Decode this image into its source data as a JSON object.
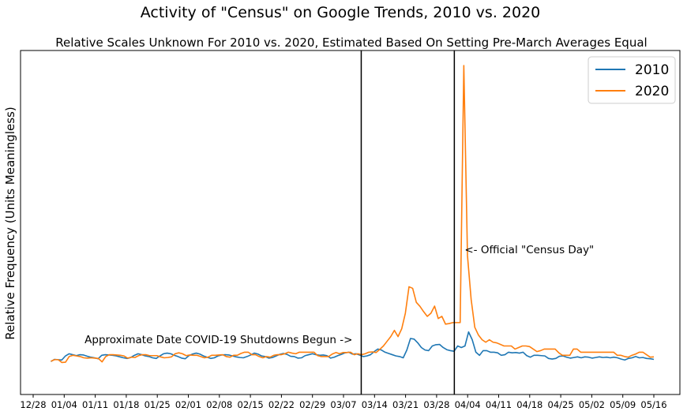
{
  "chart_data": {
    "type": "line",
    "title": "Activity of \"Census\" on Google Trends, 2010 vs. 2020",
    "subtitle": "Relative Scales Unknown For 2010 vs. 2020, Estimated Based On Setting Pre-March Averages Equal",
    "xlabel": "",
    "ylabel": "Relative Frequency (Units Meaningless)",
    "x_tick_labels": [
      "12/28",
      "01/04",
      "01/11",
      "01/18",
      "01/25",
      "02/01",
      "02/08",
      "02/15",
      "02/22",
      "02/29",
      "03/07",
      "03/14",
      "03/21",
      "03/28",
      "04/04",
      "04/11",
      "04/18",
      "04/25",
      "05/02",
      "05/09",
      "05/16"
    ],
    "x_start": "01/01",
    "x_end": "05/16",
    "ylim": [
      0,
      1
    ],
    "grid": false,
    "legend_position": "top-right",
    "series": [
      {
        "name": "2010",
        "color": "#1f77b4",
        "values": [
          0.05,
          0.057,
          0.056,
          0.055,
          0.068,
          0.075,
          0.072,
          0.069,
          0.072,
          0.071,
          0.067,
          0.064,
          0.062,
          0.059,
          0.07,
          0.072,
          0.071,
          0.07,
          0.068,
          0.065,
          0.062,
          0.06,
          0.063,
          0.07,
          0.075,
          0.072,
          0.068,
          0.066,
          0.062,
          0.06,
          0.068,
          0.075,
          0.077,
          0.075,
          0.07,
          0.066,
          0.061,
          0.059,
          0.069,
          0.074,
          0.077,
          0.074,
          0.068,
          0.064,
          0.06,
          0.062,
          0.068,
          0.071,
          0.072,
          0.071,
          0.068,
          0.065,
          0.063,
          0.062,
          0.066,
          0.071,
          0.077,
          0.074,
          0.068,
          0.066,
          0.061,
          0.063,
          0.068,
          0.073,
          0.076,
          0.073,
          0.067,
          0.066,
          0.061,
          0.062,
          0.069,
          0.072,
          0.075,
          0.072,
          0.07,
          0.071,
          0.069,
          0.061,
          0.064,
          0.069,
          0.073,
          0.078,
          0.08,
          0.074,
          0.075,
          0.071,
          0.066,
          0.068,
          0.072,
          0.082,
          0.09,
          0.087,
          0.08,
          0.076,
          0.072,
          0.068,
          0.066,
          0.062,
          0.087,
          0.124,
          0.122,
          0.11,
          0.095,
          0.087,
          0.085,
          0.1,
          0.104,
          0.105,
          0.095,
          0.088,
          0.085,
          0.083,
          0.1,
          0.095,
          0.1,
          0.145,
          0.12,
          0.08,
          0.07,
          0.085,
          0.085,
          0.08,
          0.08,
          0.078,
          0.07,
          0.072,
          0.08,
          0.078,
          0.079,
          0.077,
          0.08,
          0.069,
          0.064,
          0.07,
          0.07,
          0.069,
          0.068,
          0.06,
          0.058,
          0.06,
          0.067,
          0.068,
          0.064,
          0.061,
          0.063,
          0.065,
          0.062,
          0.065,
          0.064,
          0.061,
          0.063,
          0.065,
          0.063,
          0.064,
          0.062,
          0.064,
          0.062,
          0.058,
          0.055,
          0.06,
          0.062,
          0.066,
          0.062,
          0.063,
          0.06,
          0.059,
          0.057
        ]
      },
      {
        "name": "2020",
        "color": "#ff7f0e",
        "values": [
          0.051,
          0.056,
          0.056,
          0.047,
          0.048,
          0.066,
          0.07,
          0.068,
          0.066,
          0.062,
          0.061,
          0.062,
          0.061,
          0.06,
          0.049,
          0.066,
          0.072,
          0.072,
          0.071,
          0.07,
          0.068,
          0.061,
          0.064,
          0.063,
          0.069,
          0.072,
          0.072,
          0.069,
          0.069,
          0.069,
          0.065,
          0.062,
          0.063,
          0.065,
          0.075,
          0.078,
          0.075,
          0.069,
          0.071,
          0.07,
          0.07,
          0.066,
          0.062,
          0.064,
          0.07,
          0.07,
          0.071,
          0.072,
          0.066,
          0.064,
          0.07,
          0.07,
          0.076,
          0.08,
          0.08,
          0.072,
          0.072,
          0.066,
          0.062,
          0.066,
          0.064,
          0.07,
          0.072,
          0.072,
          0.075,
          0.08,
          0.077,
          0.075,
          0.08,
          0.08,
          0.08,
          0.08,
          0.08,
          0.069,
          0.066,
          0.066,
          0.066,
          0.074,
          0.079,
          0.075,
          0.079,
          0.079,
          0.08,
          0.072,
          0.075,
          0.072,
          0.075,
          0.08,
          0.081,
          0.079,
          0.089,
          0.1,
          0.115,
          0.13,
          0.15,
          0.13,
          0.155,
          0.205,
          0.29,
          0.285,
          0.24,
          0.227,
          0.21,
          0.195,
          0.205,
          0.228,
          0.188,
          0.195,
          0.17,
          0.172,
          0.175,
          0.175,
          0.175,
          1.0,
          0.39,
          0.25,
          0.16,
          0.135,
          0.12,
          0.112,
          0.12,
          0.112,
          0.11,
          0.105,
          0.1,
          0.1,
          0.1,
          0.09,
          0.095,
          0.1,
          0.1,
          0.098,
          0.09,
          0.082,
          0.085,
          0.09,
          0.09,
          0.09,
          0.09,
          0.078,
          0.07,
          0.07,
          0.07,
          0.09,
          0.09,
          0.08,
          0.08,
          0.08,
          0.08,
          0.08,
          0.08,
          0.08,
          0.08,
          0.08,
          0.08,
          0.07,
          0.07,
          0.066,
          0.064,
          0.07,
          0.074,
          0.08,
          0.08,
          0.072,
          0.064,
          0.065
        ]
      }
    ],
    "vertical_lines": [
      {
        "x": "03/11",
        "label": "Approximate Date COVID-19 Shutdowns Begun ->",
        "label_side": "left"
      },
      {
        "x": "04/01",
        "label": "<- Official \"Census Day\"",
        "label_side": "right"
      }
    ]
  }
}
